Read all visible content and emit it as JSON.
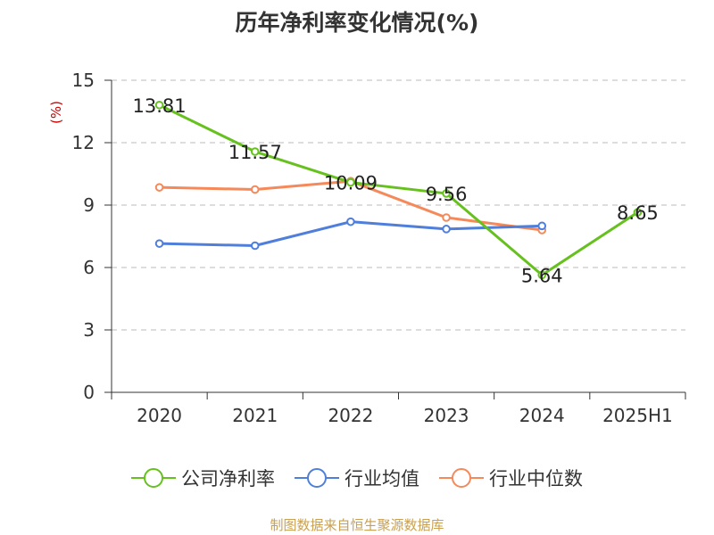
{
  "chart_data": {
    "type": "line",
    "title": "历年净利率变化情况(%)",
    "ylabel": "(%)",
    "categories": [
      "2020",
      "2021",
      "2022",
      "2023",
      "2024",
      "2025H1"
    ],
    "ylim": [
      0,
      15
    ],
    "yticks": [
      0,
      3,
      6,
      9,
      12,
      15
    ],
    "grid": true,
    "legend_position": "bottom",
    "series": [
      {
        "name": "公司净利率",
        "color": "#66c11e",
        "values": [
          13.81,
          11.57,
          10.09,
          9.56,
          5.64,
          8.65
        ],
        "labels": [
          "13.81",
          "11.57",
          "10.09",
          "9.56",
          "5.64",
          "8.65"
        ]
      },
      {
        "name": "行业均值",
        "color": "#4f7fdb",
        "values": [
          7.15,
          7.05,
          8.2,
          7.85,
          8.0,
          null
        ]
      },
      {
        "name": "行业中位数",
        "color": "#f5895a",
        "values": [
          9.85,
          9.75,
          10.15,
          8.4,
          7.8,
          null
        ]
      }
    ]
  },
  "source": "制图数据来自恒生聚源数据库"
}
